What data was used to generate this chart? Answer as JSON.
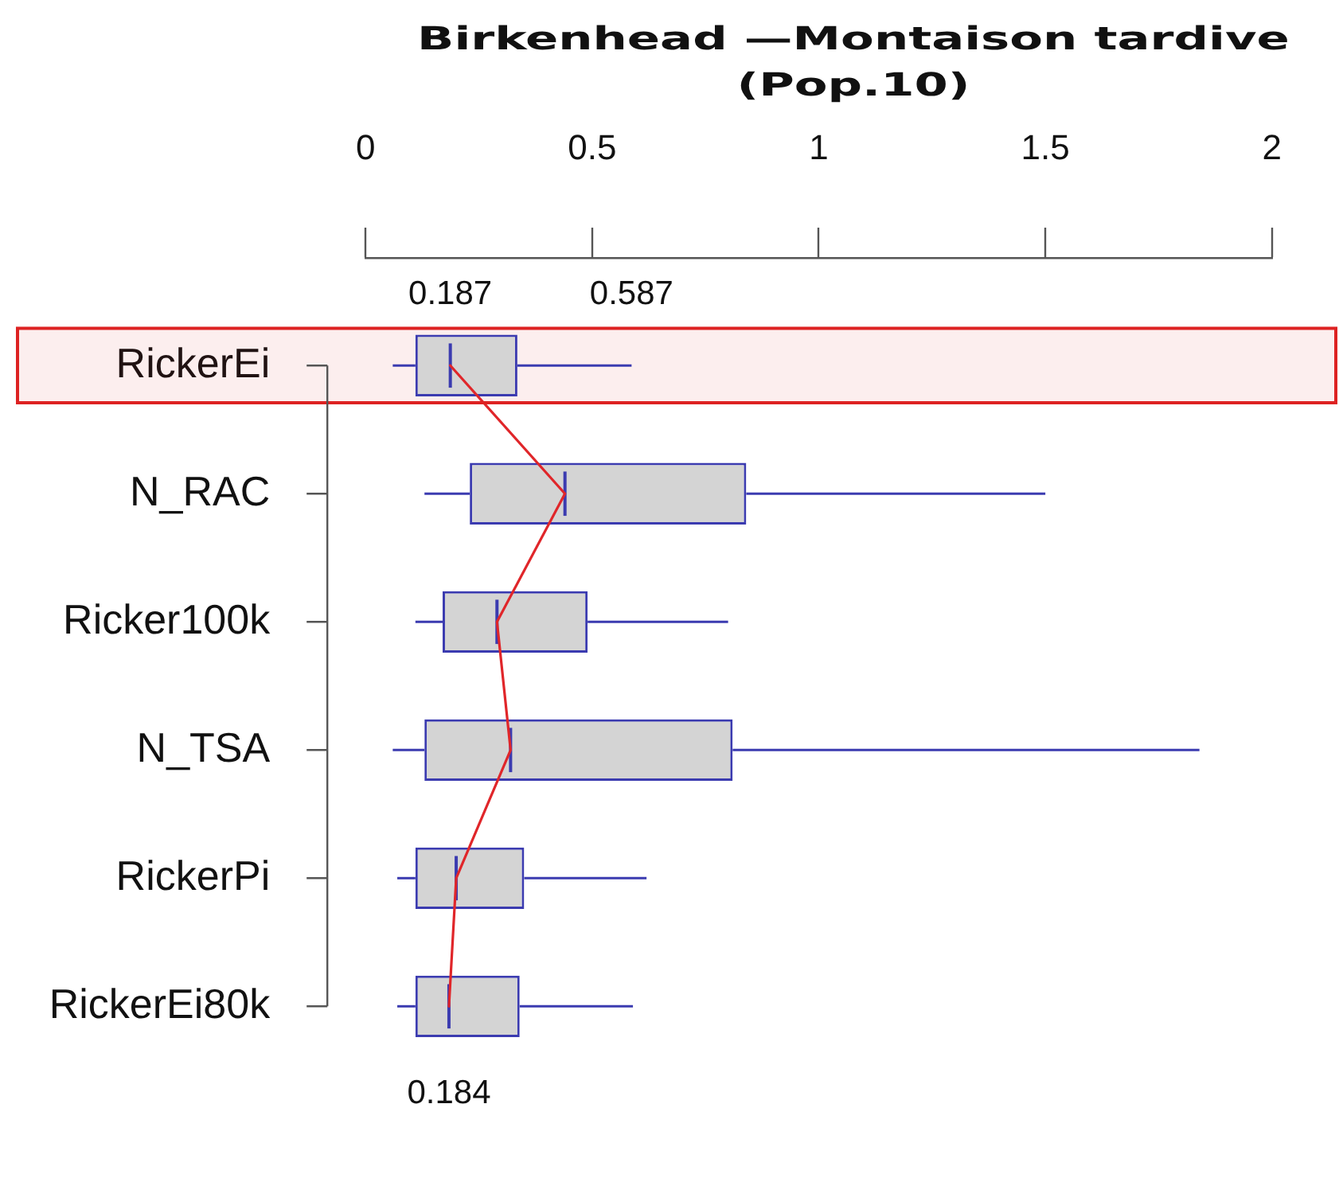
{
  "chart_data": {
    "type": "box",
    "title": "Birkenhead —Montaison tardive (Pop.10)",
    "orientation": "horizontal",
    "categories": [
      "RickerEi",
      "N_RAC",
      "Ricker100k",
      "N_TSA",
      "RickerPi",
      "RickerEi80k"
    ],
    "xlim": [
      0,
      2
    ],
    "xticks": [
      0,
      0.5,
      1,
      1.5,
      2
    ],
    "series": [
      {
        "color": "#3b3bb0",
        "boxes": [
          {
            "low": 0.06,
            "q1": 0.11,
            "median": 0.187,
            "q3": 0.335,
            "high": 0.587
          },
          {
            "low": 0.13,
            "q1": 0.23,
            "median": 0.44,
            "q3": 0.84,
            "high": 1.5
          },
          {
            "low": 0.11,
            "q1": 0.17,
            "median": 0.29,
            "q3": 0.49,
            "high": 0.8
          },
          {
            "low": 0.06,
            "q1": 0.13,
            "median": 0.32,
            "q3": 0.81,
            "high": 1.84
          },
          {
            "low": 0.07,
            "q1": 0.11,
            "median": 0.2,
            "q3": 0.35,
            "high": 0.62
          },
          {
            "low": 0.07,
            "q1": 0.11,
            "median": 0.184,
            "q3": 0.34,
            "high": 0.59
          }
        ]
      },
      {
        "type": "line",
        "color": "#e0262a",
        "values": [
          0.187,
          0.44,
          0.29,
          0.32,
          0.2,
          0.184
        ]
      }
    ],
    "bands": [
      {
        "axis": "y",
        "from": "RickerEi",
        "to": "RickerEi",
        "color": "#dd2222"
      }
    ],
    "annotations": [
      {
        "text": "0.187",
        "x": 0.187,
        "y": "RickerEi"
      },
      {
        "text": "0.587",
        "x": 0.587,
        "y": "RickerEi"
      },
      {
        "text": "0.184",
        "x": 0.184,
        "y": "RickerEi80k"
      }
    ]
  }
}
